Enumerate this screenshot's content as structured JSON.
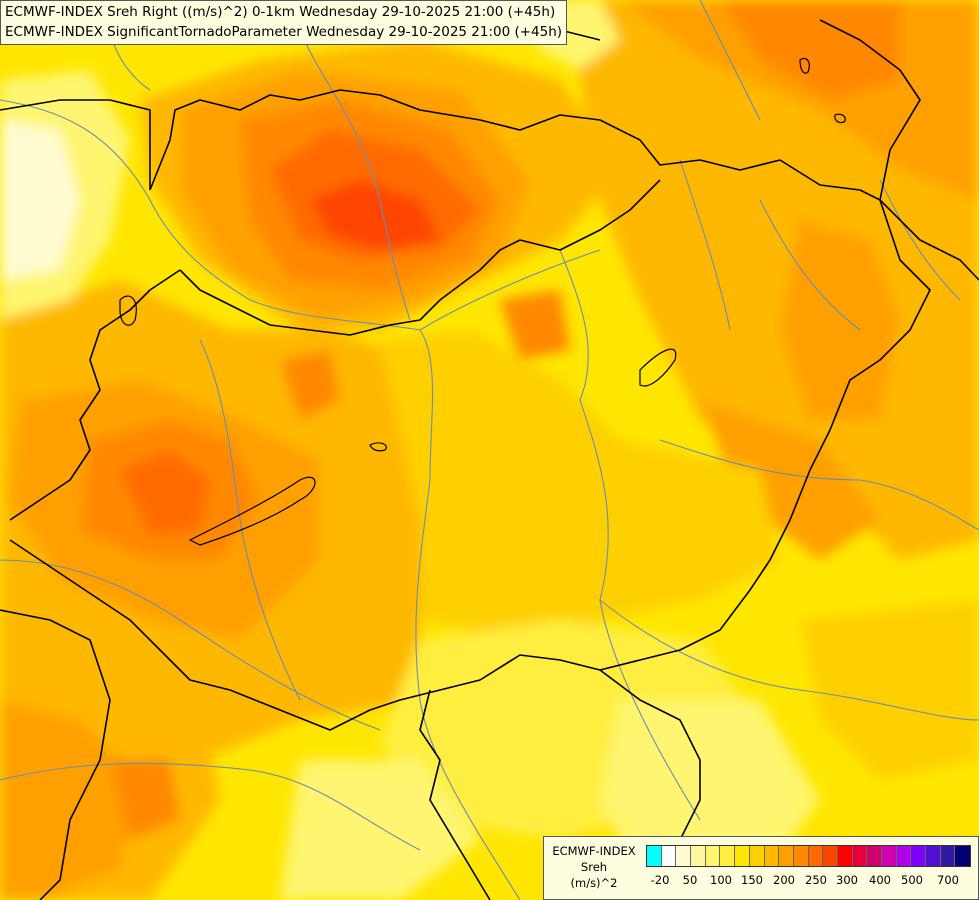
{
  "header": {
    "line1": "ECMWF-INDEX Sreh Right ((m/s)^2) 0-1km Wednesday 29-10-2025 21:00 (+45h)",
    "line2": "ECMWF-INDEX SignificantTornadoParameter Wednesday 29-10-2025 21:00 (+45h)"
  },
  "legend": {
    "title_line1": "ECMWF-INDEX",
    "title_line2": "Sreh",
    "title_line3": "(m/s)^2",
    "colors": [
      "#00ffff",
      "#ffffff",
      "#fffbd0",
      "#fff8a0",
      "#fff570",
      "#ffee40",
      "#ffe600",
      "#ffd000",
      "#ffb800",
      "#ffa000",
      "#ff8800",
      "#ff6a00",
      "#ff4400",
      "#ff0000",
      "#e8003c",
      "#d0006e",
      "#d000b0",
      "#b000e8",
      "#8000ff",
      "#5010d0",
      "#301aa0",
      "#000070"
    ],
    "ticks": [
      "-20",
      "50",
      "100",
      "150",
      "200",
      "250",
      "300",
      "400",
      "500",
      "700"
    ]
  }
}
